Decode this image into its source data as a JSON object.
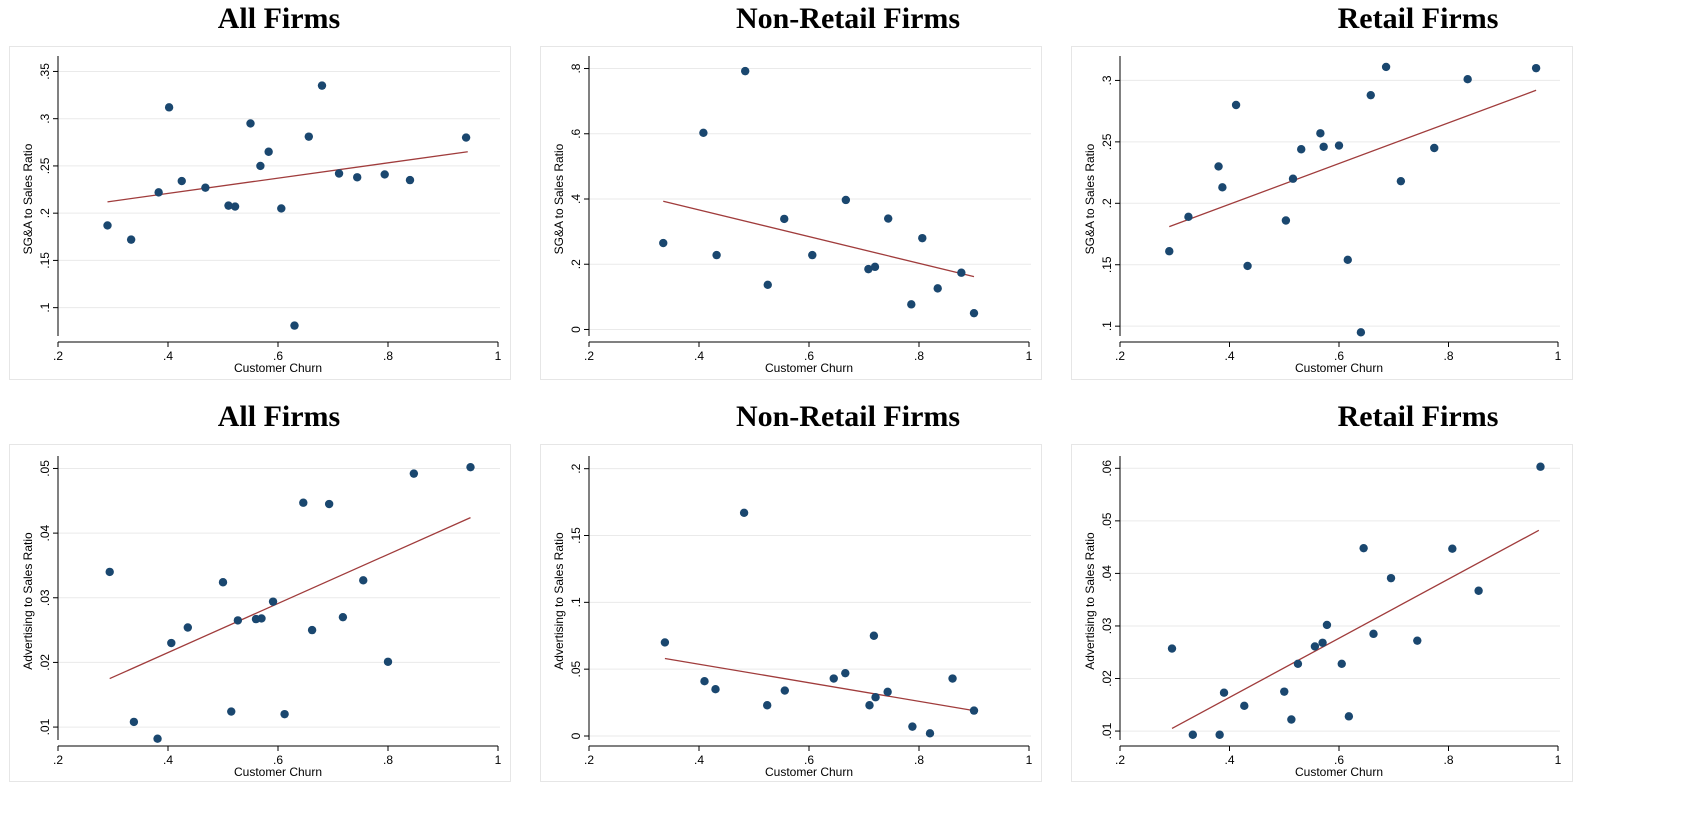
{
  "colors": {
    "marker": "#1a476f",
    "fit_line": "#a03c3c",
    "grid": "#eaeaea",
    "frame": "#e6e6e6"
  },
  "chart_data": [
    {
      "type": "scatter",
      "title": "All Firms",
      "xlabel": "Customer Churn",
      "ylabel": "SG&A to Sales Ratio",
      "xlim": [
        0.2,
        1.0
      ],
      "ylim": [
        0.07,
        0.36
      ],
      "xticks": [
        0.2,
        0.4,
        0.6,
        0.8,
        1.0
      ],
      "xtick_labels": [
        ".2",
        ".4",
        ".6",
        ".8",
        "1"
      ],
      "yticks": [
        0.1,
        0.15,
        0.2,
        0.25,
        0.3,
        0.35
      ],
      "ytick_labels": [
        ".1",
        ".15",
        ".2",
        ".25",
        ".3",
        ".35"
      ],
      "points": [
        [
          0.29,
          0.187
        ],
        [
          0.333,
          0.172
        ],
        [
          0.383,
          0.222
        ],
        [
          0.402,
          0.312
        ],
        [
          0.425,
          0.234
        ],
        [
          0.468,
          0.227
        ],
        [
          0.51,
          0.208
        ],
        [
          0.522,
          0.207
        ],
        [
          0.55,
          0.295
        ],
        [
          0.568,
          0.25
        ],
        [
          0.583,
          0.265
        ],
        [
          0.606,
          0.205
        ],
        [
          0.63,
          0.081
        ],
        [
          0.656,
          0.281
        ],
        [
          0.68,
          0.335
        ],
        [
          0.711,
          0.242
        ],
        [
          0.744,
          0.238
        ],
        [
          0.794,
          0.241
        ],
        [
          0.84,
          0.235
        ],
        [
          0.942,
          0.28
        ]
      ],
      "fit": [
        [
          0.29,
          0.212
        ],
        [
          0.945,
          0.265
        ]
      ],
      "grid": true,
      "legend": "none"
    },
    {
      "type": "scatter",
      "title": "Non-Retail Firms",
      "xlabel": "Customer Churn",
      "ylabel": "SG&A to Sales Ratio",
      "xlim": [
        0.2,
        1.0
      ],
      "ylim": [
        -0.02,
        0.82
      ],
      "xticks": [
        0.2,
        0.4,
        0.6,
        0.8,
        1.0
      ],
      "xtick_labels": [
        ".2",
        ".4",
        ".6",
        ".8",
        "1"
      ],
      "yticks": [
        0,
        0.2,
        0.4,
        0.6,
        0.8
      ],
      "ytick_labels": [
        "0",
        ".2",
        ".4",
        ".6",
        ".8"
      ],
      "points": [
        [
          0.335,
          0.265
        ],
        [
          0.408,
          0.603
        ],
        [
          0.432,
          0.228
        ],
        [
          0.484,
          0.792
        ],
        [
          0.525,
          0.137
        ],
        [
          0.555,
          0.339
        ],
        [
          0.606,
          0.228
        ],
        [
          0.667,
          0.397
        ],
        [
          0.708,
          0.185
        ],
        [
          0.72,
          0.192
        ],
        [
          0.744,
          0.34
        ],
        [
          0.786,
          0.077
        ],
        [
          0.806,
          0.28
        ],
        [
          0.834,
          0.126
        ],
        [
          0.877,
          0.174
        ],
        [
          0.9,
          0.05
        ]
      ],
      "fit": [
        [
          0.335,
          0.393
        ],
        [
          0.9,
          0.162
        ]
      ],
      "grid": true,
      "legend": "none"
    },
    {
      "type": "scatter",
      "title": "Retail Firms",
      "xlabel": "Customer Churn",
      "ylabel": "SG&A to Sales Ratio",
      "xlim": [
        0.2,
        1.0
      ],
      "ylim": [
        0.092,
        0.315
      ],
      "xticks": [
        0.2,
        0.4,
        0.6,
        0.8,
        1.0
      ],
      "xtick_labels": [
        ".2",
        ".4",
        ".6",
        ".8",
        "1"
      ],
      "yticks": [
        0.1,
        0.15,
        0.2,
        0.25,
        0.3
      ],
      "ytick_labels": [
        ".1",
        ".15",
        ".2",
        ".25",
        ".3"
      ],
      "points": [
        [
          0.29,
          0.161
        ],
        [
          0.325,
          0.189
        ],
        [
          0.38,
          0.23
        ],
        [
          0.387,
          0.213
        ],
        [
          0.412,
          0.28
        ],
        [
          0.433,
          0.149
        ],
        [
          0.503,
          0.186
        ],
        [
          0.516,
          0.22
        ],
        [
          0.531,
          0.244
        ],
        [
          0.566,
          0.257
        ],
        [
          0.572,
          0.246
        ],
        [
          0.6,
          0.247
        ],
        [
          0.616,
          0.154
        ],
        [
          0.64,
          0.095
        ],
        [
          0.658,
          0.288
        ],
        [
          0.686,
          0.311
        ],
        [
          0.713,
          0.218
        ],
        [
          0.774,
          0.245
        ],
        [
          0.835,
          0.301
        ],
        [
          0.96,
          0.31
        ]
      ],
      "fit": [
        [
          0.29,
          0.181
        ],
        [
          0.96,
          0.292
        ]
      ],
      "grid": true,
      "legend": "none"
    },
    {
      "type": "scatter",
      "title": "All Firms",
      "xlabel": "Customer Churn",
      "ylabel": "Advertising to Sales Ratio",
      "xlim": [
        0.2,
        1.0
      ],
      "ylim": [
        0.008,
        0.051
      ],
      "xticks": [
        0.2,
        0.4,
        0.6,
        0.8,
        1.0
      ],
      "xtick_labels": [
        ".2",
        ".4",
        ".6",
        ".8",
        "1"
      ],
      "yticks": [
        0.01,
        0.02,
        0.03,
        0.04,
        0.05
      ],
      "ytick_labels": [
        ".01",
        ".02",
        ".03",
        ".04",
        ".05"
      ],
      "points": [
        [
          0.294,
          0.034
        ],
        [
          0.338,
          0.0108
        ],
        [
          0.381,
          0.0082
        ],
        [
          0.406,
          0.023
        ],
        [
          0.436,
          0.0254
        ],
        [
          0.5,
          0.0324
        ],
        [
          0.515,
          0.0124
        ],
        [
          0.527,
          0.0265
        ],
        [
          0.56,
          0.0267
        ],
        [
          0.57,
          0.0268
        ],
        [
          0.591,
          0.0294
        ],
        [
          0.612,
          0.012
        ],
        [
          0.646,
          0.0447
        ],
        [
          0.662,
          0.025
        ],
        [
          0.693,
          0.0445
        ],
        [
          0.718,
          0.027
        ],
        [
          0.755,
          0.0327
        ],
        [
          0.8,
          0.0201
        ],
        [
          0.847,
          0.0492
        ],
        [
          0.95,
          0.0502
        ]
      ],
      "fit": [
        [
          0.294,
          0.0175
        ],
        [
          0.95,
          0.0424
        ]
      ],
      "grid": true,
      "legend": "none"
    },
    {
      "type": "scatter",
      "title": "Non-Retail Firms",
      "xlabel": "Customer Churn",
      "ylabel": "Advertising to Sales Ratio",
      "xlim": [
        0.2,
        1.0
      ],
      "ylim": [
        -0.003,
        0.205
      ],
      "xticks": [
        0.2,
        0.4,
        0.6,
        0.8,
        1.0
      ],
      "xtick_labels": [
        ".2",
        ".4",
        ".6",
        ".8",
        "1"
      ],
      "yticks": [
        0,
        0.05,
        0.1,
        0.15,
        0.2
      ],
      "ytick_labels": [
        "0",
        ".05",
        ".1",
        ".15",
        ".2"
      ],
      "points": [
        [
          0.338,
          0.07
        ],
        [
          0.41,
          0.041
        ],
        [
          0.43,
          0.035
        ],
        [
          0.482,
          0.167
        ],
        [
          0.524,
          0.023
        ],
        [
          0.556,
          0.034
        ],
        [
          0.645,
          0.043
        ],
        [
          0.666,
          0.047
        ],
        [
          0.71,
          0.023
        ],
        [
          0.718,
          0.075
        ],
        [
          0.721,
          0.029
        ],
        [
          0.743,
          0.033
        ],
        [
          0.788,
          0.007
        ],
        [
          0.82,
          0.002
        ],
        [
          0.861,
          0.043
        ],
        [
          0.9,
          0.019
        ]
      ],
      "fit": [
        [
          0.338,
          0.058
        ],
        [
          0.9,
          0.019
        ]
      ],
      "grid": true,
      "legend": "none"
    },
    {
      "type": "scatter",
      "title": "Retail Firms",
      "xlabel": "Customer Churn",
      "ylabel": "Advertising to Sales Ratio",
      "xlim": [
        0.2,
        1.0
      ],
      "ylim": [
        0.0083,
        0.0612
      ],
      "xticks": [
        0.2,
        0.4,
        0.6,
        0.8,
        1.0
      ],
      "xtick_labels": [
        ".2",
        ".4",
        ".6",
        ".8",
        "1"
      ],
      "yticks": [
        0.01,
        0.02,
        0.03,
        0.04,
        0.05,
        0.06
      ],
      "ytick_labels": [
        ".01",
        ".02",
        ".03",
        ".04",
        ".05",
        ".06"
      ],
      "points": [
        [
          0.295,
          0.0257
        ],
        [
          0.333,
          0.0093
        ],
        [
          0.382,
          0.0093
        ],
        [
          0.39,
          0.0173
        ],
        [
          0.427,
          0.0148
        ],
        [
          0.5,
          0.0175
        ],
        [
          0.513,
          0.0122
        ],
        [
          0.525,
          0.0228
        ],
        [
          0.556,
          0.0261
        ],
        [
          0.57,
          0.0268
        ],
        [
          0.578,
          0.0302
        ],
        [
          0.605,
          0.0228
        ],
        [
          0.618,
          0.0128
        ],
        [
          0.645,
          0.0448
        ],
        [
          0.663,
          0.0285
        ],
        [
          0.695,
          0.0391
        ],
        [
          0.743,
          0.0272
        ],
        [
          0.807,
          0.0447
        ],
        [
          0.855,
          0.0367
        ],
        [
          0.968,
          0.0603
        ]
      ],
      "fit": [
        [
          0.295,
          0.0105
        ],
        [
          0.965,
          0.0482
        ]
      ],
      "grid": true,
      "legend": "none"
    }
  ]
}
